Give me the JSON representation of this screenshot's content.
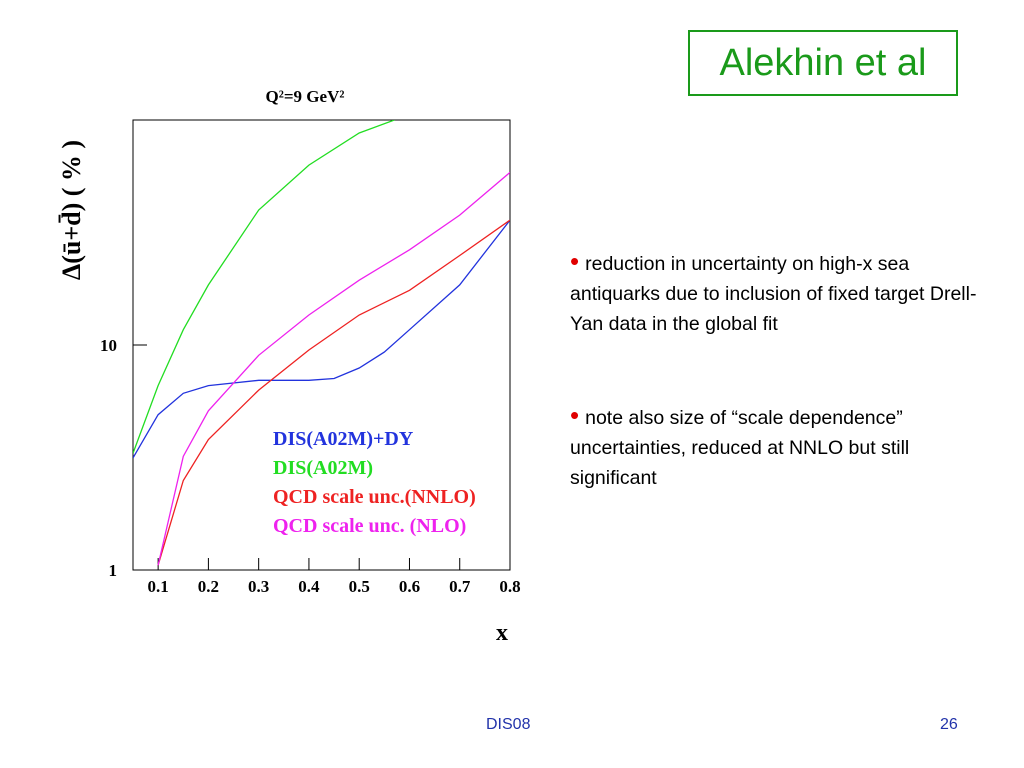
{
  "slide": {
    "title": "Alekhin et al",
    "bullets": [
      "reduction in uncertainty on high-x sea antiquarks due to inclusion of fixed target Drell-Yan data in the global fit",
      "note also size of “scale dependence” uncertainties, reduced at NNLO but still significant"
    ],
    "footer": "DIS08",
    "page": "26"
  },
  "chart_data": {
    "type": "line",
    "title": "Q²=9 GeV²",
    "xlabel": "x",
    "ylabel": "Δ(ū+d̄) ( % )",
    "xlim": [
      0.05,
      0.8
    ],
    "ylim": [
      1,
      100
    ],
    "ylog": true,
    "xticks": [
      0.1,
      0.2,
      0.3,
      0.4,
      0.5,
      0.6,
      0.7,
      0.8
    ],
    "yticks": [
      1,
      10
    ],
    "series": [
      {
        "name": "DIS(A02M)+DY",
        "color": "#2233dd",
        "x": [
          0.05,
          0.1,
          0.15,
          0.2,
          0.3,
          0.4,
          0.45,
          0.5,
          0.55,
          0.6,
          0.7,
          0.8
        ],
        "values": [
          3.15,
          4.9,
          6.1,
          6.6,
          6.97,
          6.97,
          7.1,
          7.9,
          9.3,
          11.7,
          18.5,
          35.9
        ]
      },
      {
        "name": "DIS(A02M)",
        "color": "#22dd22",
        "x": [
          0.05,
          0.1,
          0.15,
          0.2,
          0.3,
          0.4,
          0.5,
          0.57
        ],
        "values": [
          3.3,
          6.6,
          11.7,
          18.5,
          39.8,
          63,
          87.5,
          100
        ]
      },
      {
        "name": "QCD scale unc.(NNLO)",
        "color": "#ee2222",
        "x": [
          0.1,
          0.15,
          0.2,
          0.3,
          0.4,
          0.5,
          0.6,
          0.7,
          0.8
        ],
        "values": [
          1.05,
          2.5,
          3.8,
          6.3,
          9.5,
          13.6,
          17.5,
          25,
          35.9
        ]
      },
      {
        "name": "QCD scale unc. (NLO)",
        "color": "#ee22ee",
        "x": [
          0.1,
          0.15,
          0.2,
          0.3,
          0.4,
          0.5,
          0.6,
          0.7,
          0.8
        ],
        "values": [
          1.05,
          3.2,
          5.1,
          9.0,
          13.6,
          19.4,
          26.5,
          37.8,
          58.5
        ]
      }
    ]
  }
}
